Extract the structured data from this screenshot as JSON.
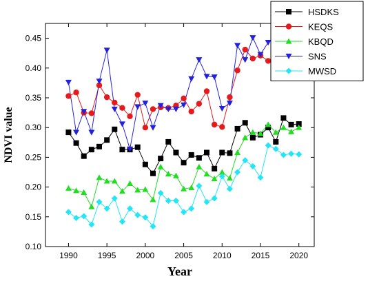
{
  "chart_data": {
    "type": "line",
    "xlabel": "Year",
    "ylabel": "NDVI value",
    "xlim": [
      1987,
      2022
    ],
    "ylim": [
      0.1,
      0.475
    ],
    "x_ticks": [
      1990,
      1995,
      2000,
      2005,
      2010,
      2015,
      2020
    ],
    "y_ticks": [
      0.1,
      0.15,
      0.2,
      0.25,
      0.3,
      0.35,
      0.4,
      0.45
    ],
    "y_tick_labels": [
      "0.10",
      "0.15",
      "0.20",
      "0.25",
      "0.30",
      "0.35",
      "0.40",
      "0.45"
    ],
    "x": [
      1990,
      1991,
      1992,
      1993,
      1994,
      1995,
      1996,
      1997,
      1998,
      1999,
      2000,
      2001,
      2002,
      2003,
      2004,
      2005,
      2006,
      2007,
      2008,
      2009,
      2010,
      2011,
      2012,
      2013,
      2014,
      2015,
      2016,
      2017,
      2018,
      2019,
      2020
    ],
    "legend_position": "top-right",
    "grid": false,
    "series": [
      {
        "name": "HSDKS",
        "color": "#000000",
        "marker": "square",
        "values": [
          0.292,
          0.274,
          0.252,
          0.263,
          0.268,
          0.279,
          0.297,
          0.263,
          0.263,
          0.267,
          0.238,
          0.223,
          0.248,
          0.276,
          0.258,
          0.241,
          0.254,
          0.249,
          0.258,
          0.231,
          0.258,
          0.257,
          0.298,
          0.308,
          0.283,
          0.288,
          0.3,
          0.276,
          0.316,
          0.305,
          0.306
        ]
      },
      {
        "name": "KEQS",
        "color": "#e41a1c",
        "marker": "circle",
        "values": [
          0.353,
          0.359,
          0.325,
          0.324,
          0.371,
          0.351,
          0.342,
          0.333,
          0.319,
          0.355,
          0.3,
          0.331,
          0.334,
          0.333,
          0.337,
          0.349,
          0.327,
          0.34,
          0.361,
          0.305,
          0.301,
          0.351,
          0.396,
          0.431,
          0.416,
          0.421,
          0.412,
          null,
          null,
          null,
          null
        ]
      },
      {
        "name": "KBQD",
        "color": "#22dd22",
        "marker": "triangle-up",
        "values": [
          0.198,
          0.194,
          0.191,
          0.167,
          0.216,
          0.21,
          0.21,
          0.193,
          0.206,
          0.195,
          0.196,
          0.179,
          0.234,
          0.222,
          0.219,
          0.197,
          0.199,
          0.234,
          0.222,
          0.214,
          0.225,
          0.215,
          0.258,
          0.283,
          0.292,
          0.29,
          0.305,
          0.292,
          0.3,
          0.293,
          0.3
        ]
      },
      {
        "name": "SNS",
        "color": "#2222dd",
        "marker": "triangle-down",
        "values": [
          0.376,
          0.292,
          0.327,
          0.292,
          0.378,
          0.43,
          0.331,
          0.306,
          0.264,
          0.335,
          0.341,
          0.3,
          0.337,
          0.331,
          0.331,
          0.338,
          0.382,
          0.414,
          0.386,
          0.385,
          0.332,
          0.341,
          0.438,
          0.414,
          0.451,
          0.423,
          0.443,
          null,
          null,
          null,
          null
        ]
      },
      {
        "name": "MWSD",
        "color": "#22e5f5",
        "marker": "diamond",
        "values": [
          0.158,
          0.148,
          0.151,
          0.137,
          0.175,
          0.164,
          0.181,
          0.142,
          0.164,
          0.153,
          0.149,
          0.134,
          0.19,
          0.177,
          0.177,
          0.158,
          0.164,
          0.202,
          0.175,
          0.181,
          0.218,
          0.197,
          0.225,
          0.245,
          0.235,
          0.216,
          0.27,
          0.264,
          0.254,
          0.256,
          0.255
        ]
      }
    ]
  }
}
